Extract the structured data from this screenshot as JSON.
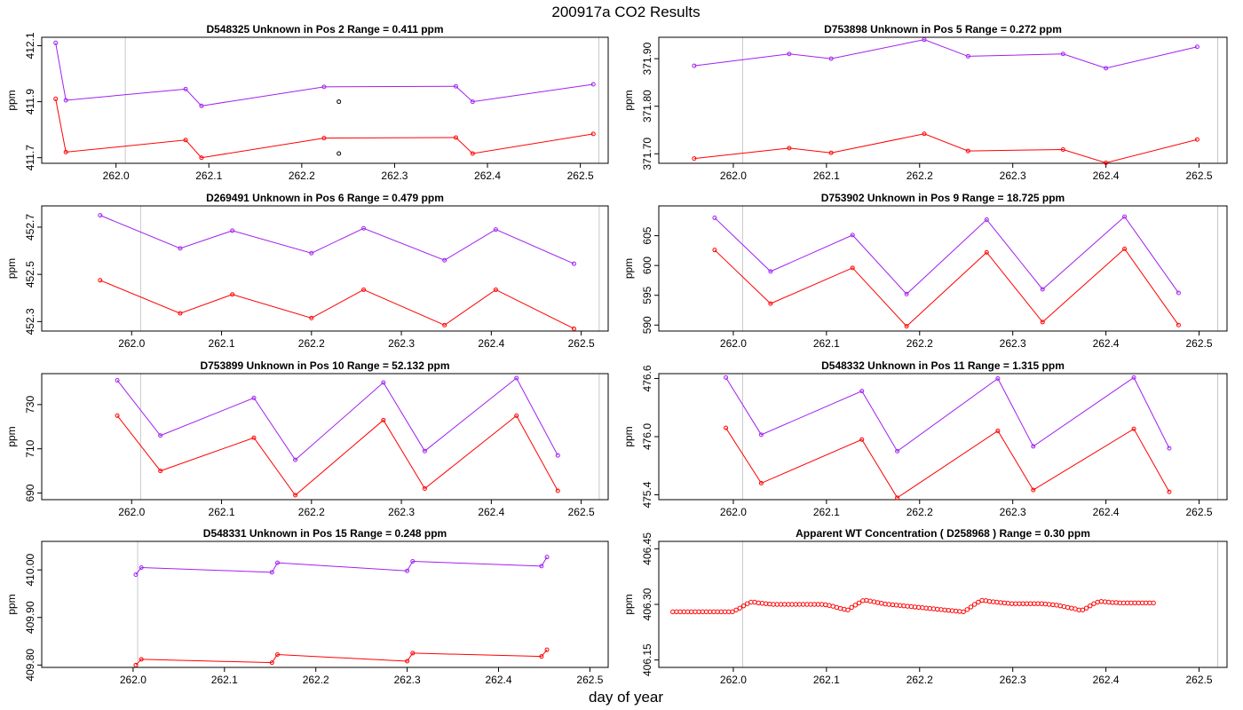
{
  "figure": {
    "title": "200917a  CO2 Results",
    "xlabel": "day of year"
  },
  "colors": {
    "series_purple": "#a020f0",
    "series_red": "#ff0000",
    "outlier_black": "#000000",
    "vline_gray": "#c8c8c8",
    "frame": "#000000"
  },
  "chart_data": [
    {
      "type": "line",
      "title": "D548325    Unknown in Pos 2        Range =  0.411 ppm",
      "ylabel": "ppm",
      "xlim": [
        261.92,
        262.53
      ],
      "ylim": [
        411.68,
        412.13
      ],
      "xticks": [
        262.0,
        262.1,
        262.2,
        262.3,
        262.4,
        262.5
      ],
      "xticklabels": [
        "262.0",
        "262.1",
        "262.2",
        "262.3",
        "262.4",
        "262.5"
      ],
      "yticks": [
        411.7,
        411.9,
        412.1
      ],
      "yticklabels": [
        "411.7",
        "411.9",
        "412.1"
      ],
      "vlines": [
        262.01,
        262.52
      ],
      "series": [
        {
          "color": "#a020f0",
          "x": [
            261.935,
            261.946,
            262.075,
            262.092,
            262.224,
            262.366,
            262.384,
            262.514
          ],
          "y": [
            412.11,
            411.905,
            411.945,
            411.885,
            411.953,
            411.955,
            411.9,
            411.962
          ]
        },
        {
          "color": "#ff0000",
          "x": [
            261.935,
            261.946,
            262.075,
            262.092,
            262.224,
            262.366,
            262.384,
            262.514
          ],
          "y": [
            411.91,
            411.72,
            411.763,
            411.7,
            411.77,
            411.772,
            411.715,
            411.785
          ]
        },
        {
          "color": "#000000",
          "points_only": true,
          "x": [
            262.24,
            262.24
          ],
          "y": [
            411.9,
            411.715
          ]
        }
      ]
    },
    {
      "type": "line",
      "title": "D753898    Unknown in Pos 5        Range =  0.272 ppm",
      "ylabel": "ppm",
      "xlim": [
        261.92,
        262.53
      ],
      "ylim": [
        371.68,
        371.945
      ],
      "xticks": [
        262.0,
        262.1,
        262.2,
        262.3,
        262.4,
        262.5
      ],
      "xticklabels": [
        "262.0",
        "262.1",
        "262.2",
        "262.3",
        "262.4",
        "262.5"
      ],
      "yticks": [
        371.7,
        371.8,
        371.9
      ],
      "yticklabels": [
        "371.70",
        "371.80",
        "371.90"
      ],
      "vlines": [
        262.01,
        262.52
      ],
      "series": [
        {
          "color": "#a020f0",
          "x": [
            261.958,
            262.06,
            262.105,
            262.205,
            262.252,
            262.354,
            262.4,
            262.498
          ],
          "y": [
            371.885,
            371.91,
            371.9,
            371.94,
            371.905,
            371.91,
            371.88,
            371.925
          ]
        },
        {
          "color": "#ff0000",
          "x": [
            261.958,
            262.06,
            262.105,
            262.205,
            262.252,
            262.354,
            262.4,
            262.498
          ],
          "y": [
            371.69,
            371.712,
            371.702,
            371.742,
            371.706,
            371.709,
            371.681,
            371.73
          ]
        }
      ]
    },
    {
      "type": "line",
      "title": "D269491    Unknown in Pos 6        Range =  0.479 ppm",
      "ylabel": "ppm",
      "xlim": [
        261.9,
        262.53
      ],
      "ylim": [
        452.26,
        452.79
      ],
      "xticks": [
        262.0,
        262.1,
        262.2,
        262.3,
        262.4,
        262.5
      ],
      "xticklabels": [
        "262.0",
        "262.1",
        "262.2",
        "262.3",
        "262.4",
        "262.5"
      ],
      "yticks": [
        452.3,
        452.5,
        452.7
      ],
      "yticklabels": [
        "452.3",
        "452.5",
        "452.7"
      ],
      "vlines": [
        262.01,
        262.52
      ],
      "series": [
        {
          "color": "#a020f0",
          "x": [
            261.965,
            262.054,
            262.112,
            262.2,
            262.258,
            262.348,
            262.405,
            262.492
          ],
          "y": [
            452.75,
            452.61,
            452.685,
            452.59,
            452.695,
            452.56,
            452.69,
            452.545
          ]
        },
        {
          "color": "#ff0000",
          "x": [
            261.965,
            262.054,
            262.112,
            262.2,
            262.258,
            262.348,
            262.405,
            262.492
          ],
          "y": [
            452.475,
            452.335,
            452.415,
            452.315,
            452.435,
            452.285,
            452.435,
            452.27
          ]
        }
      ]
    },
    {
      "type": "line",
      "title": "D753902    Unknown in Pos 9        Range =  18.725 ppm",
      "ylabel": "ppm",
      "xlim": [
        261.92,
        262.53
      ],
      "ylim": [
        589.0,
        610.0
      ],
      "xticks": [
        262.0,
        262.1,
        262.2,
        262.3,
        262.4,
        262.5
      ],
      "xticklabels": [
        "262.0",
        "262.1",
        "262.2",
        "262.3",
        "262.4",
        "262.5"
      ],
      "yticks": [
        590,
        595,
        600,
        605
      ],
      "yticklabels": [
        "590",
        "595",
        "600",
        "605"
      ],
      "vlines": [
        262.01,
        262.52
      ],
      "series": [
        {
          "color": "#a020f0",
          "x": [
            261.98,
            262.04,
            262.128,
            262.186,
            262.272,
            262.332,
            262.42,
            262.478
          ],
          "y": [
            608.0,
            599.0,
            605.1,
            595.2,
            607.7,
            596.0,
            608.2,
            595.4
          ]
        },
        {
          "color": "#ff0000",
          "x": [
            261.98,
            262.04,
            262.128,
            262.186,
            262.272,
            262.332,
            262.42,
            262.478
          ],
          "y": [
            602.6,
            593.6,
            599.6,
            589.8,
            602.2,
            590.5,
            602.8,
            590.0
          ]
        }
      ]
    },
    {
      "type": "line",
      "title": "D753899    Unknown in Pos 10        Range =  52.132 ppm",
      "ylabel": "ppm",
      "xlim": [
        261.9,
        262.53
      ],
      "ylim": [
        687.0,
        744.0
      ],
      "xticks": [
        262.0,
        262.1,
        262.2,
        262.3,
        262.4,
        262.5
      ],
      "xticklabels": [
        "262.0",
        "262.1",
        "262.2",
        "262.3",
        "262.4",
        "262.5"
      ],
      "yticks": [
        690,
        710,
        730
      ],
      "yticklabels": [
        "690",
        "710",
        "730"
      ],
      "vlines": [
        262.01,
        262.52
      ],
      "series": [
        {
          "color": "#a020f0",
          "x": [
            261.984,
            262.032,
            262.136,
            262.182,
            262.28,
            262.326,
            262.428,
            262.474
          ],
          "y": [
            741,
            716,
            733,
            705,
            740,
            709,
            742,
            707
          ]
        },
        {
          "color": "#ff0000",
          "x": [
            261.984,
            262.032,
            262.136,
            262.182,
            262.28,
            262.326,
            262.428,
            262.474
          ],
          "y": [
            725,
            700,
            715,
            689,
            723,
            692,
            725,
            691
          ]
        }
      ]
    },
    {
      "type": "line",
      "title": "D548332    Unknown in Pos 11        Range =  1.315 ppm",
      "ylabel": "ppm",
      "xlim": [
        261.92,
        262.53
      ],
      "ylim": [
        475.35,
        476.65
      ],
      "xticks": [
        262.0,
        262.1,
        262.2,
        262.3,
        262.4,
        262.5
      ],
      "xticklabels": [
        "262.0",
        "262.1",
        "262.2",
        "262.3",
        "262.4",
        "262.5"
      ],
      "yticks": [
        475.4,
        476.0,
        476.6
      ],
      "yticklabels": [
        "475.4",
        "476.0",
        "476.6"
      ],
      "vlines": [
        262.01,
        262.52
      ],
      "series": [
        {
          "color": "#a020f0",
          "x": [
            261.992,
            262.03,
            262.138,
            262.176,
            262.284,
            262.322,
            262.43,
            262.468
          ],
          "y": [
            476.61,
            476.02,
            476.47,
            475.85,
            476.6,
            475.9,
            476.61,
            475.88
          ]
        },
        {
          "color": "#ff0000",
          "x": [
            261.992,
            262.03,
            262.138,
            262.176,
            262.284,
            262.322,
            262.43,
            262.468
          ],
          "y": [
            476.09,
            475.52,
            475.97,
            475.37,
            476.06,
            475.45,
            476.08,
            475.43
          ]
        }
      ]
    },
    {
      "type": "line",
      "title": "D548331    Unknown in Pos 15        Range =  0.248 ppm",
      "ylabel": "ppm",
      "xlim": [
        261.9,
        262.52
      ],
      "ylim": [
        409.795,
        410.06
      ],
      "xticks": [
        262.0,
        262.1,
        262.2,
        262.3,
        262.4,
        262.5
      ],
      "xticklabels": [
        "262.0",
        "262.1",
        "262.2",
        "262.3",
        "262.4",
        "262.5"
      ],
      "yticks": [
        409.8,
        409.9,
        410.0
      ],
      "yticklabels": [
        "409.80",
        "409.90",
        "410.00"
      ],
      "vlines": [
        262.005,
        262.52
      ],
      "series": [
        {
          "color": "#a020f0",
          "x": [
            262.003,
            262.009,
            262.152,
            262.158,
            262.3,
            262.306,
            262.447,
            262.453
          ],
          "y": [
            409.99,
            410.005,
            409.995,
            410.015,
            409.998,
            410.018,
            410.008,
            410.027
          ]
        },
        {
          "color": "#ff0000",
          "x": [
            262.003,
            262.009,
            262.152,
            262.158,
            262.3,
            262.306,
            262.447,
            262.453
          ],
          "y": [
            409.8,
            409.812,
            409.805,
            409.822,
            409.808,
            409.825,
            409.818,
            409.832
          ]
        }
      ]
    },
    {
      "type": "scatter",
      "title": "Apparent WT Concentration ( D258968 )        Range = 0.30 ppm",
      "ylabel": "ppm",
      "xlim": [
        261.92,
        262.53
      ],
      "ylim": [
        406.13,
        406.47
      ],
      "xticks": [
        262.0,
        262.1,
        262.2,
        262.3,
        262.4,
        262.5
      ],
      "xticklabels": [
        "262.0",
        "262.1",
        "262.2",
        "262.3",
        "262.4",
        "262.5"
      ],
      "yticks": [
        406.15,
        406.3,
        406.45
      ],
      "yticklabels": [
        "406.15",
        "406.30",
        "406.45"
      ],
      "vlines": [
        262.01,
        262.52
      ],
      "scatter_series": {
        "color": "#ff0000",
        "x_start": 261.935,
        "x_step": 0.004,
        "y": [
          406.28,
          406.28,
          406.28,
          406.28,
          406.28,
          406.28,
          406.28,
          406.28,
          406.28,
          406.28,
          406.28,
          406.28,
          406.28,
          406.28,
          406.28,
          406.28,
          406.28,
          406.285,
          406.29,
          406.296,
          406.302,
          406.306,
          406.306,
          406.304,
          406.303,
          406.302,
          406.301,
          406.3,
          406.3,
          406.3,
          406.3,
          406.3,
          406.3,
          406.3,
          406.3,
          406.3,
          406.3,
          406.3,
          406.3,
          406.3,
          406.3,
          406.299,
          406.297,
          406.295,
          406.292,
          406.289,
          406.287,
          406.285,
          406.292,
          406.298,
          406.304,
          406.31,
          406.311,
          406.309,
          406.307,
          406.305,
          406.303,
          406.301,
          406.3,
          406.299,
          406.298,
          406.297,
          406.296,
          406.295,
          406.294,
          406.293,
          406.292,
          406.291,
          406.29,
          406.289,
          406.288,
          406.287,
          406.286,
          406.285,
          406.284,
          406.283,
          406.282,
          406.281,
          406.28,
          406.286,
          406.293,
          406.3,
          406.306,
          406.311,
          406.31,
          406.308,
          406.307,
          406.306,
          406.305,
          406.304,
          406.303,
          406.302,
          406.302,
          406.302,
          406.302,
          406.302,
          406.302,
          406.302,
          406.302,
          406.302,
          406.301,
          406.3,
          406.299,
          406.298,
          406.296,
          406.294,
          406.292,
          406.29,
          406.288,
          406.285,
          406.285,
          406.29,
          406.296,
          406.302,
          406.306,
          406.308,
          406.307,
          406.306,
          406.305,
          406.305,
          406.304,
          406.304,
          406.304,
          406.304,
          406.304,
          406.304,
          406.304,
          406.304,
          406.304,
          406.304
        ]
      }
    }
  ]
}
